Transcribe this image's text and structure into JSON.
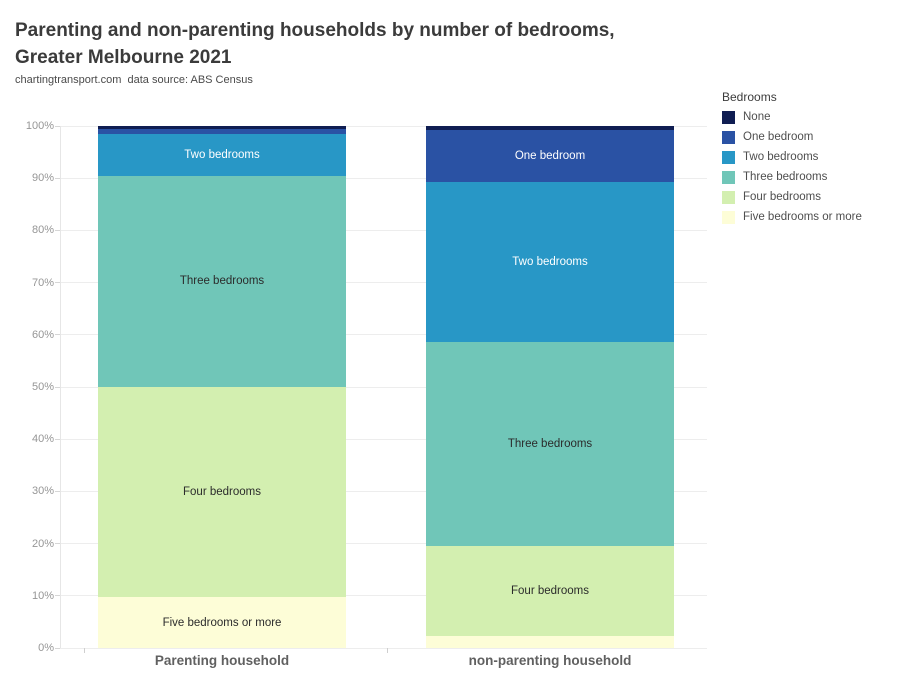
{
  "header": {
    "title_line1": "Parenting and non-parenting households by number of bedrooms,",
    "title_line2": "Greater Melbourne 2021",
    "subtitle": "chartingtransport.com  data source: ABS Census"
  },
  "legend": {
    "title": "Bedrooms"
  },
  "chart_data": {
    "type": "bar",
    "subtype": "stacked-percent",
    "title": "Parenting and non-parenting households by number of bedrooms, Greater Melbourne 2021",
    "subtitle": "chartingtransport.com  data source: ABS Census",
    "categories": [
      "Parenting household",
      "non-parenting household"
    ],
    "xlabel": "",
    "ylabel": "",
    "ylim": [
      0,
      100
    ],
    "y_tick_labels": [
      "0%",
      "10%",
      "20%",
      "30%",
      "40%",
      "50%",
      "60%",
      "70%",
      "80%",
      "90%",
      "100%"
    ],
    "grid": true,
    "legend_position": "right",
    "legend_title": "Bedrooms",
    "series_order_note": "listed top-to-bottom in stack and legend",
    "series": [
      {
        "name": "None",
        "color": "#0f1d52",
        "label_color": "#ffffff",
        "values": [
          0.5,
          0.7
        ],
        "labels_visible": [
          false,
          false
        ]
      },
      {
        "name": "One bedroom",
        "color": "#2a52a4",
        "label_color": "#ffffff",
        "values": [
          1.0,
          10.1
        ],
        "labels_visible": [
          false,
          true
        ]
      },
      {
        "name": "Two bedrooms",
        "color": "#2897c6",
        "label_color": "#ffffff",
        "values": [
          8.0,
          30.5
        ],
        "labels_visible": [
          true,
          true
        ]
      },
      {
        "name": "Three bedrooms",
        "color": "#70c6b8",
        "label_color": "#2b2b2b",
        "values": [
          40.5,
          39.1
        ],
        "labels_visible": [
          true,
          true
        ]
      },
      {
        "name": "Four bedrooms",
        "color": "#d3efb0",
        "label_color": "#2b2b2b",
        "values": [
          40.3,
          17.3
        ],
        "labels_visible": [
          true,
          true
        ]
      },
      {
        "name": "Five bedrooms or more",
        "color": "#fdfdd7",
        "label_color": "#2b2b2b",
        "values": [
          9.7,
          2.3
        ],
        "labels_visible": [
          true,
          false
        ]
      }
    ]
  }
}
